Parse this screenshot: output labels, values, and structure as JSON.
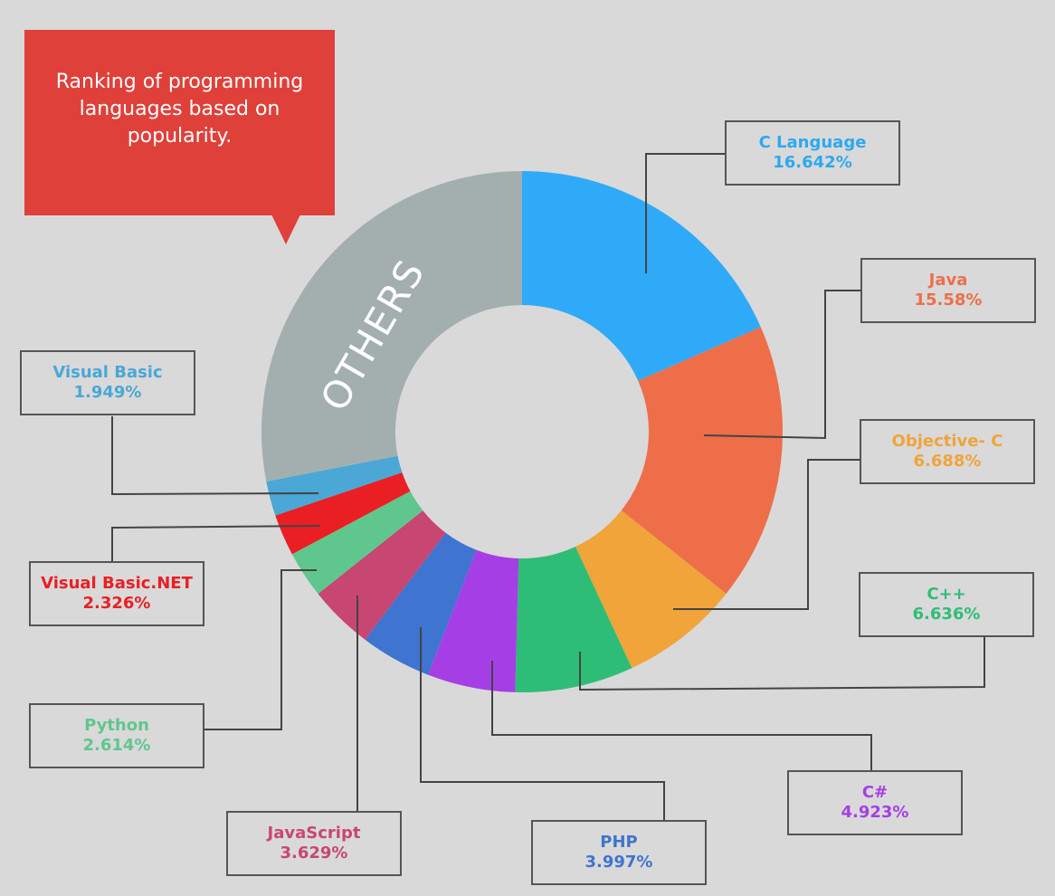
{
  "chart_data": {
    "type": "pie",
    "variant": "donut",
    "title": "Ranking of programming languages based on popularity.",
    "unit": "%",
    "slices": [
      {
        "name": "C Language",
        "value": 16.642,
        "label": "16.642%",
        "color": "#2faaf8"
      },
      {
        "name": "Java",
        "value": 15.58,
        "label": "15.58%",
        "color": "#ee6e4a"
      },
      {
        "name": "Objective- C",
        "value": 6.688,
        "label": "6.688%",
        "color": "#f0a43a"
      },
      {
        "name": "C++",
        "value": 6.636,
        "label": "6.636%",
        "color": "#2ebd76"
      },
      {
        "name": "C#",
        "value": 4.923,
        "label": "4.923%",
        "color": "#a63ee6"
      },
      {
        "name": "PHP",
        "value": 3.997,
        "label": "3.997%",
        "color": "#3f74d0"
      },
      {
        "name": "JavaScript",
        "value": 3.629,
        "label": "3.629%",
        "color": "#c84672"
      },
      {
        "name": "Python",
        "value": 2.614,
        "label": "2.614%",
        "color": "#5fc78d"
      },
      {
        "name": "Visual Basic.NET",
        "value": 2.326,
        "label": "2.326%",
        "color": "#ea1f24"
      },
      {
        "name": "Visual Basic",
        "value": 1.949,
        "label": "1.949%",
        "color": "#4aa7d6"
      }
    ],
    "others": {
      "name": "OTHERS",
      "color": "#a3afae"
    },
    "label_colors": {
      "C Language": "#2ea8f0",
      "Java": "#ee6e4a",
      "Objective- C": "#f0a43a",
      "C++": "#2ebd76",
      "C#": "#a63ee6",
      "PHP": "#3f74d0",
      "JavaScript": "#c84672",
      "Python": "#5fc78d",
      "Visual Basic.NET": "#ea1f24",
      "Visual Basic": "#4aa7d6"
    }
  }
}
